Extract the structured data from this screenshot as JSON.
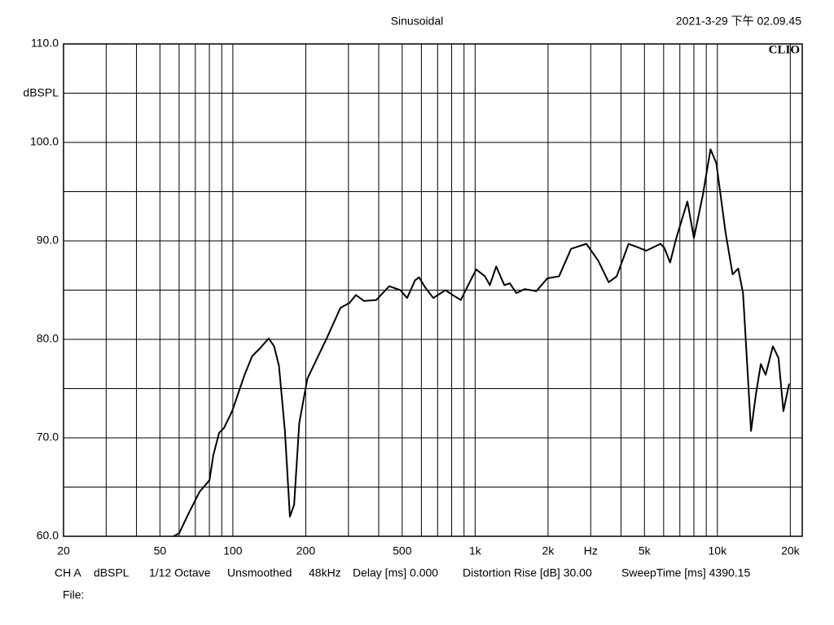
{
  "chart_data": {
    "type": "line",
    "title": "Sinusoidal",
    "timestamp": "2021-3-29 下午 02.09.45",
    "watermark": "CLIO",
    "y_label": "dBSPL",
    "info": [
      "CH A",
      "dBSPL",
      "1/12 Octave",
      "Unsmoothed",
      "48kHz",
      "Delay [ms] 0.000",
      "Distortion Rise [dB] 30.00",
      "SweepTime [ms] 4390.15"
    ],
    "file_label": "File:",
    "log_x": true,
    "grid": true,
    "xlim": [
      20,
      22400
    ],
    "ylim": [
      60,
      110
    ],
    "yticks": [
      {
        "value": 60,
        "label": "60.0"
      },
      {
        "value": 70,
        "label": "70.0"
      },
      {
        "value": 80,
        "label": "80.0"
      },
      {
        "value": 90,
        "label": "90.0"
      },
      {
        "value": 100,
        "label": "100.0"
      },
      {
        "value": 110,
        "label": "110.0"
      }
    ],
    "ygrid_minor": [
      65,
      75,
      85,
      95,
      105
    ],
    "xticks": [
      20,
      50,
      100,
      200,
      500,
      {
        "value": 1000,
        "label": "1k"
      },
      {
        "value": 2000,
        "label": "2k"
      },
      {
        "value": 3000,
        "label": "Hz"
      },
      {
        "value": 5000,
        "label": "5k"
      },
      {
        "value": 10000,
        "label": "10k"
      },
      {
        "value": 20000,
        "label": "20k"
      }
    ],
    "xgrid": [
      30,
      40,
      60,
      70,
      80,
      90,
      300,
      400,
      600,
      700,
      800,
      900,
      4000,
      6000,
      7000,
      8000,
      9000
    ],
    "x": [
      56.8,
      60,
      65.9,
      72.8,
      80.1,
      83,
      87.7,
      91.9,
      99.3,
      111.8,
      120.2,
      129.5,
      140.6,
      148,
      155,
      164,
      172,
      179,
      188,
      203,
      223,
      245,
      278,
      303,
      322,
      348,
      391,
      442,
      491,
      524,
      565,
      587,
      621,
      672,
      754,
      808,
      873,
      936,
      1010,
      1098,
      1150,
      1222,
      1320,
      1390,
      1480,
      1600,
      1790,
      1987,
      2220,
      2490,
      2880,
      3220,
      3560,
      3840,
      4300,
      4640,
      5080,
      5820,
      6040,
      6380,
      6770,
      7520,
      8000,
      8700,
      9370,
      9900,
      10800,
      11560,
      12190,
      12760,
      13770,
      14420,
      15110,
      15820,
      16950,
      17880,
      18730,
      19780
    ],
    "series": [
      {
        "name": "CH A",
        "color": "#000000",
        "values": [
          60.0,
          60.3,
          62.4,
          64.5,
          65.7,
          68.2,
          70.5,
          71.0,
          72.7,
          76.4,
          78.3,
          79.1,
          80.1,
          79.3,
          77.3,
          70.7,
          62.0,
          63.2,
          71.5,
          76.0,
          78.1,
          80.2,
          83.2,
          83.7,
          84.5,
          83.9,
          84.0,
          85.4,
          85.0,
          84.2,
          86.0,
          86.3,
          85.3,
          84.2,
          85.0,
          84.5,
          84.0,
          85.5,
          87.1,
          86.4,
          85.5,
          87.4,
          85.5,
          85.7,
          84.7,
          85.1,
          84.9,
          86.2,
          86.4,
          89.2,
          89.7,
          88.0,
          85.8,
          86.4,
          89.7,
          89.4,
          89.0,
          89.7,
          89.3,
          87.8,
          90.3,
          94.0,
          90.3,
          94.6,
          99.3,
          97.9,
          90.9,
          86.6,
          87.2,
          84.7,
          70.7,
          74.4,
          77.5,
          76.4,
          79.3,
          78.1,
          72.7,
          75.5
        ]
      }
    ]
  }
}
